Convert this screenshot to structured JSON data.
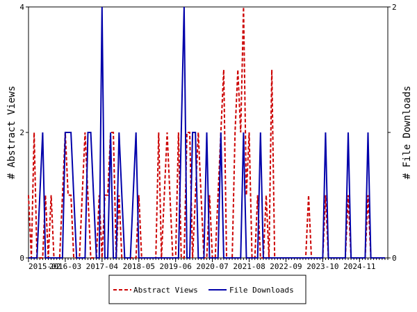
{
  "chart_data": {
    "type": "line",
    "ylabel_left": "# Abstract Views",
    "ylabel_right": "# File Downloads",
    "x_tick_labels": [
      "2015-02",
      "2016-03",
      "2017-04",
      "2018-05",
      "2019-06",
      "2020-07",
      "2021-08",
      "2022-09",
      "2023-10",
      "2024-11"
    ],
    "x_range": [
      "2015-02",
      "2025-09"
    ],
    "ylim_left": [
      0,
      4
    ],
    "ylim_right": [
      0,
      2
    ],
    "y_ticks_left": [
      "0",
      "2",
      "4"
    ],
    "y_ticks_right": [
      "0",
      "1",
      "2"
    ],
    "legend_placement": "bottom",
    "grid": false,
    "series": [
      {
        "name": "Abstract Views",
        "axis": "left",
        "color": "#cc0000",
        "style": "dashed",
        "points": [
          [
            "2015-02",
            1
          ],
          [
            "2015-03",
            0
          ],
          [
            "2015-04",
            2
          ],
          [
            "2015-05",
            0
          ],
          [
            "2015-06",
            0
          ],
          [
            "2015-07",
            0
          ],
          [
            "2015-08",
            1
          ],
          [
            "2015-09",
            0
          ],
          [
            "2015-10",
            1
          ],
          [
            "2015-11",
            0
          ],
          [
            "2015-12",
            0
          ],
          [
            "2016-01",
            0
          ],
          [
            "2016-02",
            1
          ],
          [
            "2016-03",
            2
          ],
          [
            "2016-04",
            1
          ],
          [
            "2016-05",
            1
          ],
          [
            "2016-06",
            0
          ],
          [
            "2016-07",
            0
          ],
          [
            "2016-08",
            0
          ],
          [
            "2016-09",
            1
          ],
          [
            "2016-10",
            2
          ],
          [
            "2016-11",
            1
          ],
          [
            "2016-12",
            0
          ],
          [
            "2017-01",
            0
          ],
          [
            "2017-02",
            0
          ],
          [
            "2017-03",
            1
          ],
          [
            "2017-04",
            0
          ],
          [
            "2017-05",
            1
          ],
          [
            "2017-06",
            1
          ],
          [
            "2017-07",
            2
          ],
          [
            "2017-08",
            2
          ],
          [
            "2017-09",
            0
          ],
          [
            "2017-10",
            1
          ],
          [
            "2017-11",
            0
          ],
          [
            "2017-12",
            0
          ],
          [
            "2018-01",
            0
          ],
          [
            "2018-02",
            0
          ],
          [
            "2018-03",
            0
          ],
          [
            "2018-04",
            0
          ],
          [
            "2018-05",
            1
          ],
          [
            "2018-06",
            0
          ],
          [
            "2018-07",
            0
          ],
          [
            "2018-08",
            0
          ],
          [
            "2018-09",
            0
          ],
          [
            "2018-10",
            0
          ],
          [
            "2018-11",
            0
          ],
          [
            "2018-12",
            2
          ],
          [
            "2019-01",
            0
          ],
          [
            "2019-02",
            1
          ],
          [
            "2019-03",
            2
          ],
          [
            "2019-04",
            1
          ],
          [
            "2019-05",
            0
          ],
          [
            "2019-06",
            0
          ],
          [
            "2019-07",
            2
          ],
          [
            "2019-08",
            0
          ],
          [
            "2019-09",
            0
          ],
          [
            "2019-10",
            2
          ],
          [
            "2019-11",
            2
          ],
          [
            "2019-12",
            0
          ],
          [
            "2020-01",
            1
          ],
          [
            "2020-02",
            2
          ],
          [
            "2020-03",
            1
          ],
          [
            "2020-04",
            0
          ],
          [
            "2020-05",
            0
          ],
          [
            "2020-06",
            1
          ],
          [
            "2020-07",
            0
          ],
          [
            "2020-08",
            0
          ],
          [
            "2020-09",
            1
          ],
          [
            "2020-10",
            2
          ],
          [
            "2020-11",
            3
          ],
          [
            "2020-12",
            0
          ],
          [
            "2021-01",
            0
          ],
          [
            "2021-02",
            0
          ],
          [
            "2021-03",
            2
          ],
          [
            "2021-04",
            3
          ],
          [
            "2021-05",
            2
          ],
          [
            "2021-06",
            4
          ],
          [
            "2021-07",
            1
          ],
          [
            "2021-08",
            2
          ],
          [
            "2021-09",
            0
          ],
          [
            "2021-10",
            0
          ],
          [
            "2021-11",
            1
          ],
          [
            "2021-12",
            0
          ],
          [
            "2022-01",
            0
          ],
          [
            "2022-02",
            1
          ],
          [
            "2022-03",
            0
          ],
          [
            "2022-04",
            3
          ],
          [
            "2022-05",
            0
          ],
          [
            "2022-06",
            0
          ],
          [
            "2022-07",
            0
          ],
          [
            "2022-08",
            0
          ],
          [
            "2022-09",
            0
          ],
          [
            "2022-10",
            0
          ],
          [
            "2022-11",
            0
          ],
          [
            "2022-12",
            0
          ],
          [
            "2023-01",
            0
          ],
          [
            "2023-02",
            0
          ],
          [
            "2023-03",
            0
          ],
          [
            "2023-04",
            0
          ],
          [
            "2023-05",
            1
          ],
          [
            "2023-06",
            0
          ],
          [
            "2023-07",
            0
          ],
          [
            "2023-08",
            0
          ],
          [
            "2023-09",
            0
          ],
          [
            "2023-10",
            0
          ],
          [
            "2023-11",
            1
          ],
          [
            "2023-12",
            0
          ],
          [
            "2024-01",
            0
          ],
          [
            "2024-02",
            0
          ],
          [
            "2024-03",
            0
          ],
          [
            "2024-04",
            0
          ],
          [
            "2024-05",
            0
          ],
          [
            "2024-06",
            0
          ],
          [
            "2024-07",
            1
          ],
          [
            "2024-08",
            0
          ],
          [
            "2024-09",
            0
          ],
          [
            "2024-10",
            0
          ],
          [
            "2024-11",
            0
          ],
          [
            "2024-12",
            0
          ],
          [
            "2025-01",
            0
          ],
          [
            "2025-02",
            1
          ],
          [
            "2025-03",
            0
          ],
          [
            "2025-04",
            0
          ],
          [
            "2025-05",
            0
          ],
          [
            "2025-06",
            0
          ],
          [
            "2025-07",
            0
          ],
          [
            "2025-08",
            0
          ]
        ]
      },
      {
        "name": "File Downloads",
        "axis": "right",
        "color": "#0000aa",
        "style": "solid",
        "points": [
          [
            "2015-02",
            0
          ],
          [
            "2015-03",
            0
          ],
          [
            "2015-04",
            0
          ],
          [
            "2015-05",
            0
          ],
          [
            "2015-06",
            0.5
          ],
          [
            "2015-07",
            1
          ],
          [
            "2015-08",
            0
          ],
          [
            "2015-09",
            0
          ],
          [
            "2015-10",
            0
          ],
          [
            "2015-11",
            0
          ],
          [
            "2015-12",
            0
          ],
          [
            "2016-01",
            0
          ],
          [
            "2016-02",
            0
          ],
          [
            "2016-03",
            1
          ],
          [
            "2016-04",
            1
          ],
          [
            "2016-05",
            1
          ],
          [
            "2016-06",
            0.5
          ],
          [
            "2016-07",
            0
          ],
          [
            "2016-08",
            0
          ],
          [
            "2016-09",
            0
          ],
          [
            "2016-10",
            0
          ],
          [
            "2016-11",
            1
          ],
          [
            "2016-12",
            1
          ],
          [
            "2017-01",
            0.5
          ],
          [
            "2017-02",
            0
          ],
          [
            "2017-03",
            0
          ],
          [
            "2017-04",
            2
          ],
          [
            "2017-05",
            0
          ],
          [
            "2017-06",
            0
          ],
          [
            "2017-07",
            1
          ],
          [
            "2017-08",
            0
          ],
          [
            "2017-09",
            0
          ],
          [
            "2017-10",
            1
          ],
          [
            "2017-11",
            0.5
          ],
          [
            "2017-12",
            0
          ],
          [
            "2018-01",
            0
          ],
          [
            "2018-02",
            0
          ],
          [
            "2018-03",
            0.5
          ],
          [
            "2018-04",
            1
          ],
          [
            "2018-05",
            0
          ],
          [
            "2018-06",
            0
          ],
          [
            "2018-07",
            0
          ],
          [
            "2018-08",
            0
          ],
          [
            "2018-09",
            0
          ],
          [
            "2018-10",
            0
          ],
          [
            "2018-11",
            0
          ],
          [
            "2018-12",
            0
          ],
          [
            "2019-01",
            0
          ],
          [
            "2019-02",
            0
          ],
          [
            "2019-03",
            0
          ],
          [
            "2019-04",
            0
          ],
          [
            "2019-05",
            0
          ],
          [
            "2019-06",
            0
          ],
          [
            "2019-07",
            0
          ],
          [
            "2019-08",
            1
          ],
          [
            "2019-09",
            2
          ],
          [
            "2019-10",
            0
          ],
          [
            "2019-11",
            0
          ],
          [
            "2019-12",
            1
          ],
          [
            "2020-01",
            1
          ],
          [
            "2020-02",
            0
          ],
          [
            "2020-03",
            0
          ],
          [
            "2020-04",
            0
          ],
          [
            "2020-05",
            1
          ],
          [
            "2020-06",
            0
          ],
          [
            "2020-07",
            0
          ],
          [
            "2020-08",
            0
          ],
          [
            "2020-09",
            0
          ],
          [
            "2020-10",
            1
          ],
          [
            "2020-11",
            0
          ],
          [
            "2020-12",
            0
          ],
          [
            "2021-01",
            0
          ],
          [
            "2021-02",
            0
          ],
          [
            "2021-03",
            0
          ],
          [
            "2021-04",
            0
          ],
          [
            "2021-05",
            0
          ],
          [
            "2021-06",
            1
          ],
          [
            "2021-07",
            0
          ],
          [
            "2021-08",
            0
          ],
          [
            "2021-09",
            0
          ],
          [
            "2021-10",
            0
          ],
          [
            "2021-11",
            0
          ],
          [
            "2021-12",
            1
          ],
          [
            "2022-01",
            0
          ],
          [
            "2022-02",
            0
          ],
          [
            "2022-03",
            0
          ],
          [
            "2022-04",
            0
          ],
          [
            "2022-05",
            0
          ],
          [
            "2022-06",
            0
          ],
          [
            "2022-07",
            0
          ],
          [
            "2022-08",
            0
          ],
          [
            "2022-09",
            0
          ],
          [
            "2022-10",
            0
          ],
          [
            "2022-11",
            0
          ],
          [
            "2022-12",
            0
          ],
          [
            "2023-01",
            0
          ],
          [
            "2023-02",
            0
          ],
          [
            "2023-03",
            0
          ],
          [
            "2023-04",
            0
          ],
          [
            "2023-05",
            0
          ],
          [
            "2023-06",
            0
          ],
          [
            "2023-07",
            0
          ],
          [
            "2023-08",
            0
          ],
          [
            "2023-09",
            0
          ],
          [
            "2023-10",
            0
          ],
          [
            "2023-11",
            1
          ],
          [
            "2023-12",
            0
          ],
          [
            "2024-01",
            0
          ],
          [
            "2024-02",
            0
          ],
          [
            "2024-03",
            0
          ],
          [
            "2024-04",
            0
          ],
          [
            "2024-05",
            0
          ],
          [
            "2024-06",
            0
          ],
          [
            "2024-07",
            1
          ],
          [
            "2024-08",
            0
          ],
          [
            "2024-09",
            0
          ],
          [
            "2024-10",
            0
          ],
          [
            "2024-11",
            0
          ],
          [
            "2024-12",
            0
          ],
          [
            "2025-01",
            0
          ],
          [
            "2025-02",
            1
          ],
          [
            "2025-03",
            0
          ],
          [
            "2025-04",
            0
          ],
          [
            "2025-05",
            0
          ],
          [
            "2025-06",
            0
          ],
          [
            "2025-07",
            0
          ],
          [
            "2025-08",
            0
          ]
        ]
      }
    ]
  }
}
